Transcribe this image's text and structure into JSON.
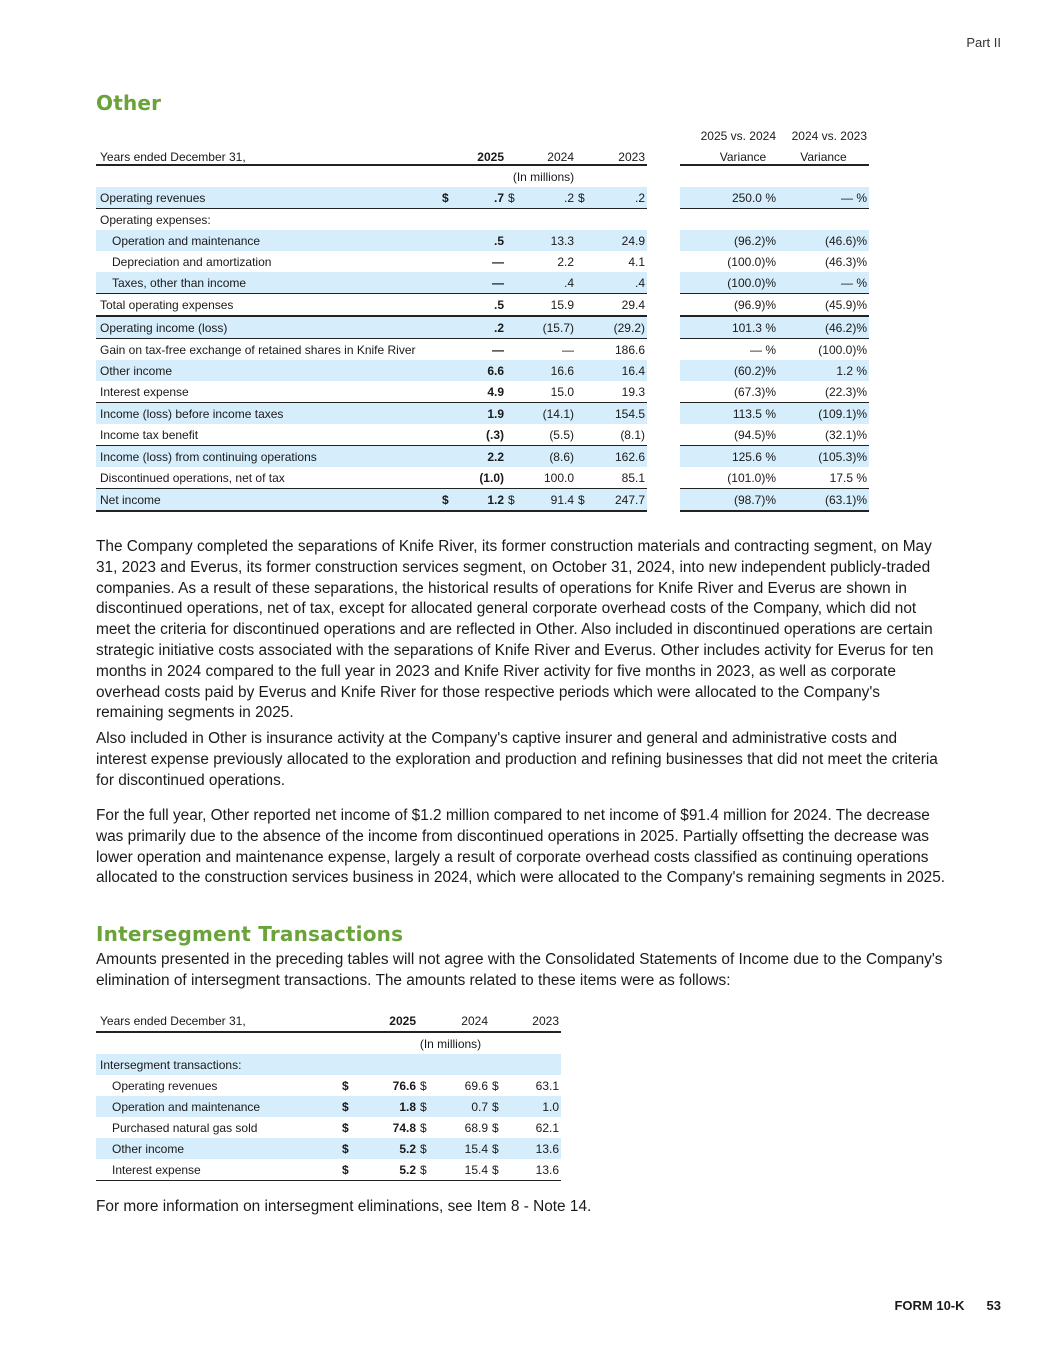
{
  "header": {
    "part": "Part II"
  },
  "other": {
    "title": "Other",
    "table": {
      "col_header_top": [
        "2025 vs. 2024",
        "2024 vs. 2023"
      ],
      "row_header": "Years ended December 31,",
      "years": [
        "2025",
        "2024",
        "2023"
      ],
      "variance": [
        "Variance",
        "Variance"
      ],
      "units": "(In millions)",
      "rows": [
        {
          "label": "Operating revenues",
          "d1": "$",
          "v2025": ".7",
          "d2": "$",
          "v2024": ".2",
          "d3": "$",
          "v2023": ".2",
          "var1": "250.0 %",
          "var2": "— %"
        },
        {
          "label": "Operating expenses:",
          "d1": "",
          "v2025": "",
          "d2": "",
          "v2024": "",
          "d3": "",
          "v2023": "",
          "var1": "",
          "var2": ""
        },
        {
          "label": "Operation and maintenance",
          "d1": "",
          "v2025": ".5",
          "d2": "",
          "v2024": "13.3",
          "d3": "",
          "v2023": "24.9",
          "var1": "(96.2)%",
          "var2": "(46.6)%"
        },
        {
          "label": "Depreciation and amortization",
          "d1": "",
          "v2025": "—",
          "d2": "",
          "v2024": "2.2",
          "d3": "",
          "v2023": "4.1",
          "var1": "(100.0)%",
          "var2": "(46.3)%"
        },
        {
          "label": "Taxes, other than income",
          "d1": "",
          "v2025": "—",
          "d2": "",
          "v2024": ".4",
          "d3": "",
          "v2023": ".4",
          "var1": "(100.0)%",
          "var2": "— %"
        },
        {
          "label": "Total operating expenses",
          "d1": "",
          "v2025": ".5",
          "d2": "",
          "v2024": "15.9",
          "d3": "",
          "v2023": "29.4",
          "var1": "(96.9)%",
          "var2": "(45.9)%"
        },
        {
          "label": "Operating income (loss)",
          "d1": "",
          "v2025": ".2",
          "d2": "",
          "v2024": "(15.7)",
          "d3": "",
          "v2023": "(29.2)",
          "var1": "101.3 %",
          "var2": "(46.2)%"
        },
        {
          "label": "Gain on tax-free exchange of retained shares in Knife River",
          "d1": "",
          "v2025": "—",
          "d2": "",
          "v2024": "—",
          "d3": "",
          "v2023": "186.6",
          "var1": "— %",
          "var2": "(100.0)%"
        },
        {
          "label": "Other income",
          "d1": "",
          "v2025": "6.6",
          "d2": "",
          "v2024": "16.6",
          "d3": "",
          "v2023": "16.4",
          "var1": "(60.2)%",
          "var2": "1.2 %"
        },
        {
          "label": "Interest expense",
          "d1": "",
          "v2025": "4.9",
          "d2": "",
          "v2024": "15.0",
          "d3": "",
          "v2023": "19.3",
          "var1": "(67.3)%",
          "var2": "(22.3)%"
        },
        {
          "label": "Income (loss) before income taxes",
          "d1": "",
          "v2025": "1.9",
          "d2": "",
          "v2024": "(14.1)",
          "d3": "",
          "v2023": "154.5",
          "var1": "113.5 %",
          "var2": "(109.1)%"
        },
        {
          "label": "Income tax benefit",
          "d1": "",
          "v2025": "(.3)",
          "d2": "",
          "v2024": "(5.5)",
          "d3": "",
          "v2023": "(8.1)",
          "var1": "(94.5)%",
          "var2": "(32.1)%"
        },
        {
          "label": "Income (loss) from continuing operations",
          "d1": "",
          "v2025": "2.2",
          "d2": "",
          "v2024": "(8.6)",
          "d3": "",
          "v2023": "162.6",
          "var1": "125.6 %",
          "var2": "(105.3)%"
        },
        {
          "label": "Discontinued operations, net of tax",
          "d1": "",
          "v2025": "(1.0)",
          "d2": "",
          "v2024": "100.0",
          "d3": "",
          "v2023": "85.1",
          "var1": "(101.0)%",
          "var2": "17.5 %"
        },
        {
          "label": "Net income",
          "d1": "$",
          "v2025": "1.2",
          "d2": "$",
          "v2024": "91.4",
          "d3": "$",
          "v2023": "247.7",
          "var1": "(98.7)%",
          "var2": "(63.1)%"
        }
      ]
    },
    "paragraphs": [
      "The Company completed the separations of Knife River, its former construction materials and contracting segment, on May 31, 2023 and Everus, its former construction services segment, on October 31, 2024, into new independent publicly-traded companies. As a result of these separations, the historical results of operations for Knife River and Everus are shown in discontinued operations, net of tax, except for allocated general corporate overhead costs of the Company, which did not meet the criteria for discontinued operations and are reflected in Other. Also included in discontinued operations are certain strategic initiative costs associated with the separations of Knife River and Everus. Other includes activity for Everus for ten months in 2024 compared to the full year in 2023 and Knife River activity for five months in 2023, as well as corporate overhead costs paid by Everus and Knife River for those respective periods which were allocated to the Company's remaining segments in 2025.",
      "Also included in Other is insurance activity at the Company's captive insurer and general and administrative costs and interest expense previously allocated to the exploration and production and refining businesses that did not meet the criteria for discontinued operations.",
      "For the full year, Other reported net income of $1.2 million compared to net income of $91.4 million for 2024. The decrease was primarily due to the absence of the income from discontinued operations in 2025. Partially offsetting the decrease was lower operation and maintenance expense, largely a result of corporate overhead costs classified as continuing operations allocated to the construction services business in 2024, which were allocated to the Company's remaining segments in 2025."
    ]
  },
  "intersegment": {
    "title": "Intersegment Transactions",
    "intro": "Amounts presented in the preceding tables will not agree with the Consolidated Statements of Income due to the Company's elimination of intersegment transactions. The amounts related to these items were as follows:",
    "table": {
      "row_header": "Years ended December 31,",
      "years": [
        "2025",
        "2024",
        "2023"
      ],
      "units": "(In millions)",
      "section": "Intersegment transactions:",
      "rows": [
        {
          "label": "Operating revenues",
          "d1": "$",
          "v2025": "76.6",
          "d2": "$",
          "v2024": "69.6",
          "d3": "$",
          "v2023": "63.1"
        },
        {
          "label": "Operation and maintenance",
          "d1": "$",
          "v2025": "1.8",
          "d2": "$",
          "v2024": "0.7",
          "d3": "$",
          "v2023": "1.0"
        },
        {
          "label": "Purchased natural gas sold",
          "d1": "$",
          "v2025": "74.8",
          "d2": "$",
          "v2024": "68.9",
          "d3": "$",
          "v2023": "62.1"
        },
        {
          "label": "Other income",
          "d1": "$",
          "v2025": "5.2",
          "d2": "$",
          "v2024": "15.4",
          "d3": "$",
          "v2023": "13.6"
        },
        {
          "label": "Interest expense",
          "d1": "$",
          "v2025": "5.2",
          "d2": "$",
          "v2024": "15.4",
          "d3": "$",
          "v2023": "13.6"
        }
      ]
    },
    "footnote": "For more information on intersegment eliminations, see Item 8 - Note 14."
  },
  "footer": {
    "form": "FORM 10-K",
    "page": "53"
  },
  "colors": {
    "heading": "#6aa339",
    "row_shade": "#d6edfb"
  }
}
